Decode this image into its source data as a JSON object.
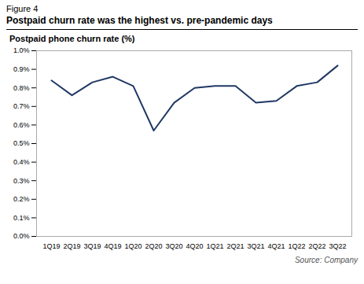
{
  "chart_data": {
    "type": "line",
    "title": "Postpaid churn rate was the highest vs. pre-pandemic days",
    "y_label": "Postpaid phone churn rate (%)",
    "annotations": [
      "Figure 4",
      "Source: Company"
    ],
    "categories": [
      "1Q19",
      "2Q19",
      "3Q19",
      "4Q19",
      "1Q20",
      "2Q20",
      "3Q20",
      "4Q20",
      "1Q21",
      "2Q21",
      "3Q21",
      "4Q21",
      "1Q22",
      "2Q22",
      "3Q22"
    ],
    "values": [
      0.0084,
      0.0076,
      0.0083,
      0.0086,
      0.0081,
      0.0057,
      0.0072,
      0.008,
      0.0081,
      0.0081,
      0.0072,
      0.0073,
      0.0081,
      0.0083,
      0.0092
    ],
    "color": "#1f3864",
    "ylim": [
      0.0,
      0.01
    ],
    "yticks": [
      {
        "value": 0.0,
        "label": "0.0%"
      },
      {
        "value": 0.001,
        "label": "0.1%"
      },
      {
        "value": 0.002,
        "label": "0.2%"
      },
      {
        "value": 0.003,
        "label": "0.3%"
      },
      {
        "value": 0.004,
        "label": "0.4%"
      },
      {
        "value": 0.005,
        "label": "0.5%"
      },
      {
        "value": 0.006,
        "label": "0.6%"
      },
      {
        "value": 0.007,
        "label": "0.7%"
      },
      {
        "value": 0.008,
        "label": "0.8%"
      },
      {
        "value": 0.009,
        "label": "0.9%"
      },
      {
        "value": 0.01,
        "label": "1.0%"
      }
    ],
    "grid": false
  }
}
